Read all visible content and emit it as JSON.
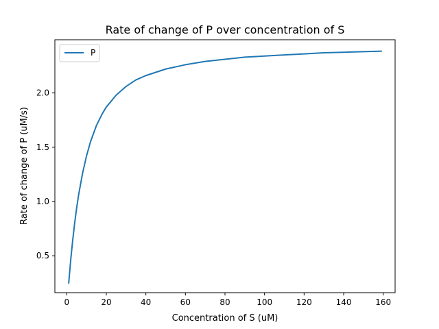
{
  "chart_data": {
    "type": "line",
    "title": "Rate of change of P over concentration of S",
    "xlabel": "Concentration of S (uM)",
    "ylabel": "Rate of change of P (uM/s)",
    "xlim": [
      -6,
      166
    ],
    "ylim": [
      0.16,
      2.49
    ],
    "x_ticks": [
      0,
      20,
      40,
      60,
      80,
      100,
      120,
      140,
      160
    ],
    "y_ticks": [
      0.5,
      1.0,
      1.5,
      2.0
    ],
    "x_tick_labels": [
      "0",
      "20",
      "40",
      "60",
      "80",
      "100",
      "120",
      "140",
      "160"
    ],
    "y_tick_labels": [
      "0.5",
      "1.0",
      "1.5",
      "2.0"
    ],
    "legend_position": "top-left",
    "grid": false,
    "series": [
      {
        "name": "P",
        "color": "#1f77b4",
        "x": [
          1,
          2,
          3,
          4,
          5,
          6,
          8,
          10,
          12,
          15,
          18,
          20,
          25,
          30,
          35,
          40,
          45,
          50,
          60,
          70,
          80,
          90,
          100,
          110,
          120,
          130,
          140,
          150,
          159
        ],
        "y": [
          0.25,
          0.46,
          0.64,
          0.8,
          0.94,
          1.06,
          1.26,
          1.42,
          1.55,
          1.7,
          1.81,
          1.87,
          1.98,
          2.06,
          2.12,
          2.16,
          2.19,
          2.22,
          2.26,
          2.29,
          2.31,
          2.33,
          2.34,
          2.35,
          2.36,
          2.37,
          2.375,
          2.38,
          2.385
        ]
      }
    ]
  }
}
